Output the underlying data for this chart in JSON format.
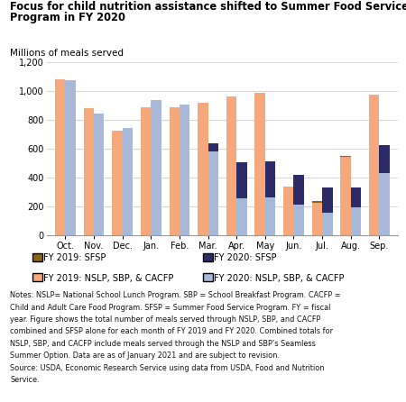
{
  "title_line1": "Focus for child nutrition assistance shifted to Summer Food Service",
  "title_line2": "Program in FY 2020",
  "ylabel": "Millions of meals served",
  "months": [
    "Oct.",
    "Nov.",
    "Dec.",
    "Jan.",
    "Feb.",
    "Mar.",
    "Apr.",
    "May",
    "Jun.",
    "Jul.",
    "Aug.",
    "Sep."
  ],
  "fy2019_nslp": [
    1085,
    880,
    725,
    890,
    885,
    920,
    965,
    990,
    340,
    225,
    545,
    975
  ],
  "fy2019_sfsp": [
    0,
    0,
    0,
    0,
    0,
    0,
    0,
    0,
    0,
    15,
    5,
    0
  ],
  "fy2020_nslp": [
    1075,
    845,
    745,
    940,
    905,
    580,
    255,
    260,
    215,
    155,
    195,
    430
  ],
  "fy2020_sfsp": [
    0,
    0,
    0,
    0,
    0,
    60,
    250,
    255,
    205,
    175,
    135,
    195
  ],
  "color_fy2019_nslp": "#F5A87C",
  "color_fy2019_sfsp": "#8B6418",
  "color_fy2020_nslp": "#A8B8D8",
  "color_fy2020_sfsp": "#2D2A68",
  "ylim": [
    0,
    1200
  ],
  "yticks": [
    0,
    200,
    400,
    600,
    800,
    1000,
    1200
  ],
  "ytick_labels": [
    "0",
    "200",
    "400",
    "600",
    "800",
    "1,000",
    "1,200"
  ],
  "bar_width": 0.36,
  "legend_row1": [
    "FY 2019: SFSP",
    "FY 2020: SFSP"
  ],
  "legend_row2": [
    "FY 2019: NSLP, SBP, & CACFP",
    "FY 2020: NSLP, SBP, & CACFP"
  ],
  "notes_line1": "Notes: NSLP= National School Lunch Program. SBP = School Breakfast Program. CACFP =",
  "notes_line2": "Child and Adult Care Food Program. SFSP = Summer Food Service Program. FY = fiscal",
  "notes_line3": "year. Figure shows the total number of meals served through NSLP, SBP, and CACFP",
  "notes_line4": "combined and SFSP alone for each month of FY 2019 and FY 2020. Combined totals for",
  "notes_line5": "NSLP, SBP, and CACFP include meals served through the NSLP and SBP’s Seamless",
  "notes_line6": "Summer Option. Data are as of January 2021 and are subject to revision.",
  "notes_line7": "Source: USDA, Economic Research Service using data from USDA, Food and Nutrition",
  "notes_line8": "Service."
}
